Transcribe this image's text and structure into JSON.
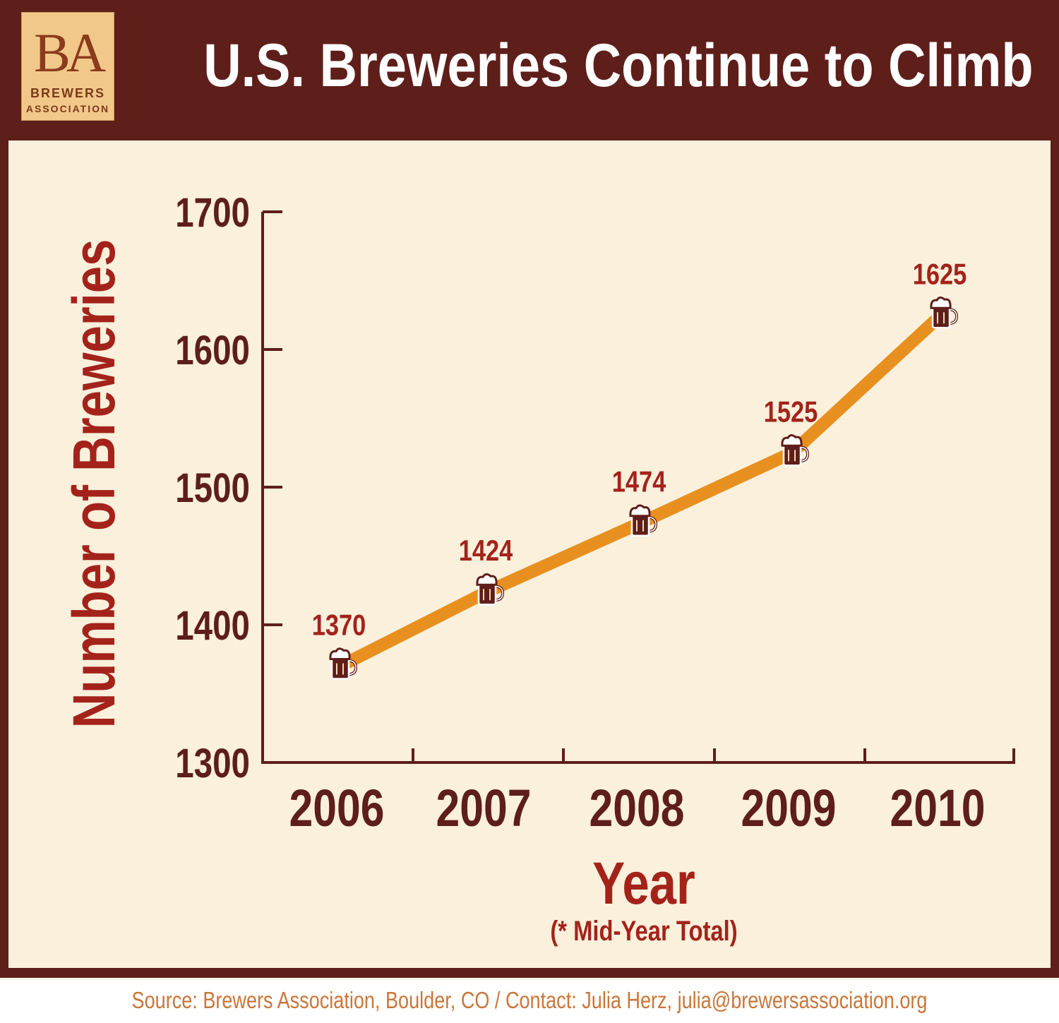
{
  "header": {
    "title": "U.S. Breweries Continue to Climb",
    "logo": {
      "mark": "BA",
      "line1": "BREWERS",
      "line2": "ASSOCIATION"
    }
  },
  "chart_data": {
    "type": "line",
    "title": "U.S. Breweries Continue to Climb",
    "xlabel": "Year",
    "xlabel_note": "(* Mid-Year Total)",
    "ylabel": "Number of Breweries",
    "categories": [
      "2006",
      "2007",
      "2008",
      "2009",
      "2010"
    ],
    "values": [
      1370,
      1424,
      1474,
      1525,
      1625
    ],
    "data_labels": [
      "1370",
      "1424",
      "1474",
      "1525",
      "1625"
    ],
    "ylim": [
      1300,
      1700
    ],
    "yticks": [
      "1300",
      "1400",
      "1500",
      "1600",
      "1700"
    ],
    "grid": false,
    "marker": "beer-mug-icon",
    "colors": {
      "line": "#e8901f",
      "axis": "#5e1e1a",
      "labels": "#a3231b",
      "tick_text": "#5e1e1a"
    }
  },
  "footer": {
    "source": "Source: Brewers Association, Boulder, CO  /  Contact: Julia Herz, julia@brewersassociation.org"
  }
}
